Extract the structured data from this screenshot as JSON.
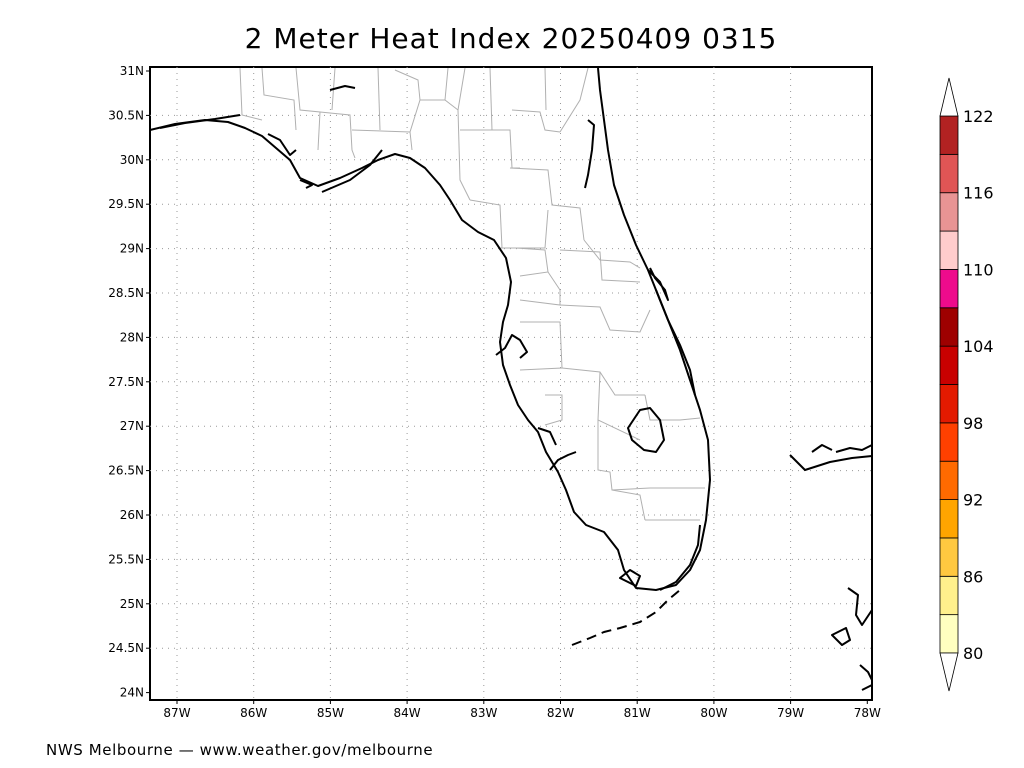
{
  "title": "2 Meter Heat Index 20250409 0315",
  "footer": "NWS Melbourne — www.weather.gov/melbourne",
  "map": {
    "lat_ticks": [
      "31N",
      "30.5N",
      "30N",
      "29.5N",
      "29N",
      "28.5N",
      "28N",
      "27.5N",
      "27N",
      "26.5N",
      "26N",
      "25.5N",
      "25N",
      "24.5N",
      "24N"
    ],
    "lon_ticks": [
      "87W",
      "86W",
      "85W",
      "84W",
      "83W",
      "82W",
      "81W",
      "80W",
      "79W",
      "78W"
    ]
  },
  "colorbar": {
    "bins": [
      {
        "color": "#ffffc0"
      },
      {
        "color": "#fff08c"
      },
      {
        "color": "#ffc840"
      },
      {
        "color": "#ffa500"
      },
      {
        "color": "#ff6a00"
      },
      {
        "color": "#ff4000"
      },
      {
        "color": "#e31a00"
      },
      {
        "color": "#c80000"
      },
      {
        "color": "#9e0000"
      },
      {
        "color": "#ee0b8c"
      },
      {
        "color": "#ffcccc"
      },
      {
        "color": "#e89494"
      },
      {
        "color": "#e05555"
      },
      {
        "color": "#b22222"
      }
    ],
    "labels": [
      "80",
      "86",
      "92",
      "98",
      "104",
      "110",
      "116",
      "122"
    ]
  }
}
